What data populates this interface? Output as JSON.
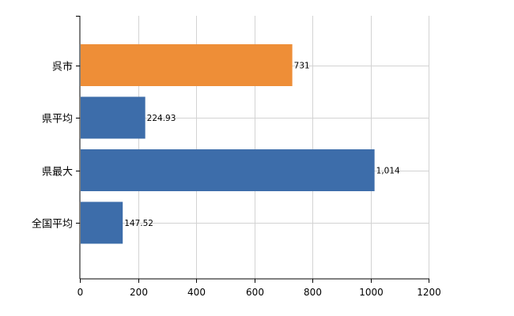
{
  "chart_data": {
    "type": "bar",
    "orientation": "horizontal",
    "categories": [
      "呉市",
      "県平均",
      "県最大",
      "全国平均"
    ],
    "values": [
      731,
      224.93,
      1014,
      147.52
    ],
    "value_labels": [
      "731",
      "224.93",
      "1,014",
      "147.52"
    ],
    "bar_colors": [
      "#ee8e37",
      "#3d6daa",
      "#3d6daa",
      "#3d6daa"
    ],
    "xlim": [
      0,
      1200
    ],
    "x_ticks": [
      0,
      200,
      400,
      600,
      800,
      1000,
      1200
    ],
    "x_tick_labels": [
      "0",
      "200",
      "400",
      "600",
      "800",
      "1000",
      "1200"
    ],
    "grid": true,
    "legend": "none",
    "title": "",
    "xlabel": "",
    "ylabel": ""
  }
}
